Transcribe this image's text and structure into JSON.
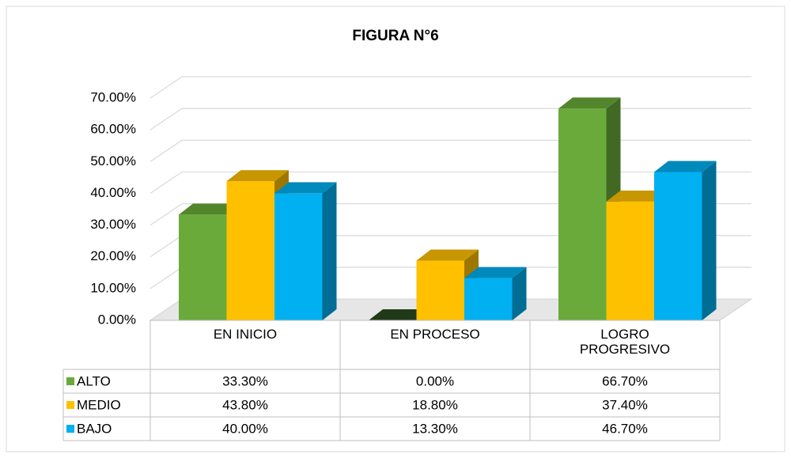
{
  "chart_data": {
    "type": "bar3d",
    "title": "FIGURA N°6",
    "categories": [
      "EN INICIO",
      "EN PROCESO",
      "LOGRO PROGRESIVO"
    ],
    "series": [
      {
        "name": "ALTO",
        "color": "#6aaa3a",
        "values": [
          33.3,
          0,
          66.7
        ],
        "value_labels": [
          "33.30%",
          "0.00%",
          "66.70%"
        ]
      },
      {
        "name": "MEDIO",
        "color": "#ffc000",
        "values": [
          43.8,
          18.8,
          37.4
        ],
        "value_labels": [
          "43.80%",
          "18.80%",
          "37.40%"
        ]
      },
      {
        "name": "BAJO",
        "color": "#00b0f0",
        "values": [
          40,
          13.3,
          46.7
        ],
        "value_labels": [
          "40.00%",
          "13.30%",
          "46.70%"
        ]
      }
    ],
    "ylim": [
      0,
      70
    ],
    "yticks": [
      {
        "value": 0,
        "label": "0.00%"
      },
      {
        "value": 10,
        "label": "10.00%"
      },
      {
        "value": 20,
        "label": "20.00%"
      },
      {
        "value": 30,
        "label": "30.00%"
      },
      {
        "value": 40,
        "label": "40.00%"
      },
      {
        "value": 50,
        "label": "50.00%"
      },
      {
        "value": 60,
        "label": "60.00%"
      },
      {
        "value": 70,
        "label": "70.00%"
      }
    ],
    "grid": true
  }
}
